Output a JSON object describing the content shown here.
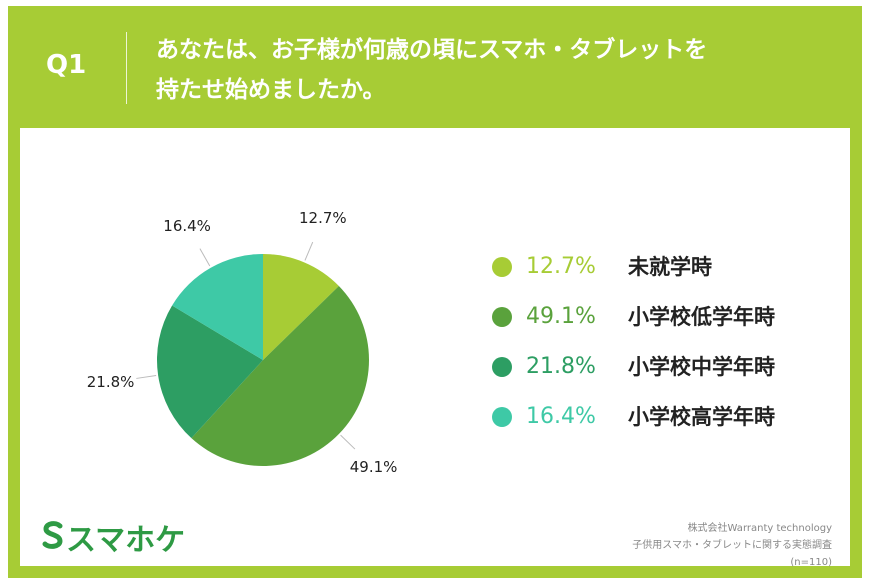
{
  "header": {
    "q_label": "Q1",
    "question_line1": "あなたは、お子様が何歳の頃にスマホ・タブレットを",
    "question_line2": "持たせ始めましたか。"
  },
  "chart_data": {
    "type": "pie",
    "title": "",
    "categories": [
      "未就学時",
      "小学校低学年時",
      "小学校中学年時",
      "小学校高学年時"
    ],
    "values": [
      12.7,
      49.1,
      21.8,
      16.4
    ],
    "labels": [
      "12.7%",
      "49.1%",
      "21.8%",
      "16.4%"
    ],
    "colors": [
      "#a7cc35",
      "#5aa23c",
      "#2d9e63",
      "#3ec9a6"
    ],
    "legend_placement": "right",
    "start": "12 o'clock",
    "direction": "clockwise"
  },
  "branding": {
    "logo_text": "スマホケ"
  },
  "source": {
    "line1": "株式会社Warranty technology",
    "line2": "子供用スマホ・タブレットに関する実態調査",
    "line3": "(n=110)"
  }
}
